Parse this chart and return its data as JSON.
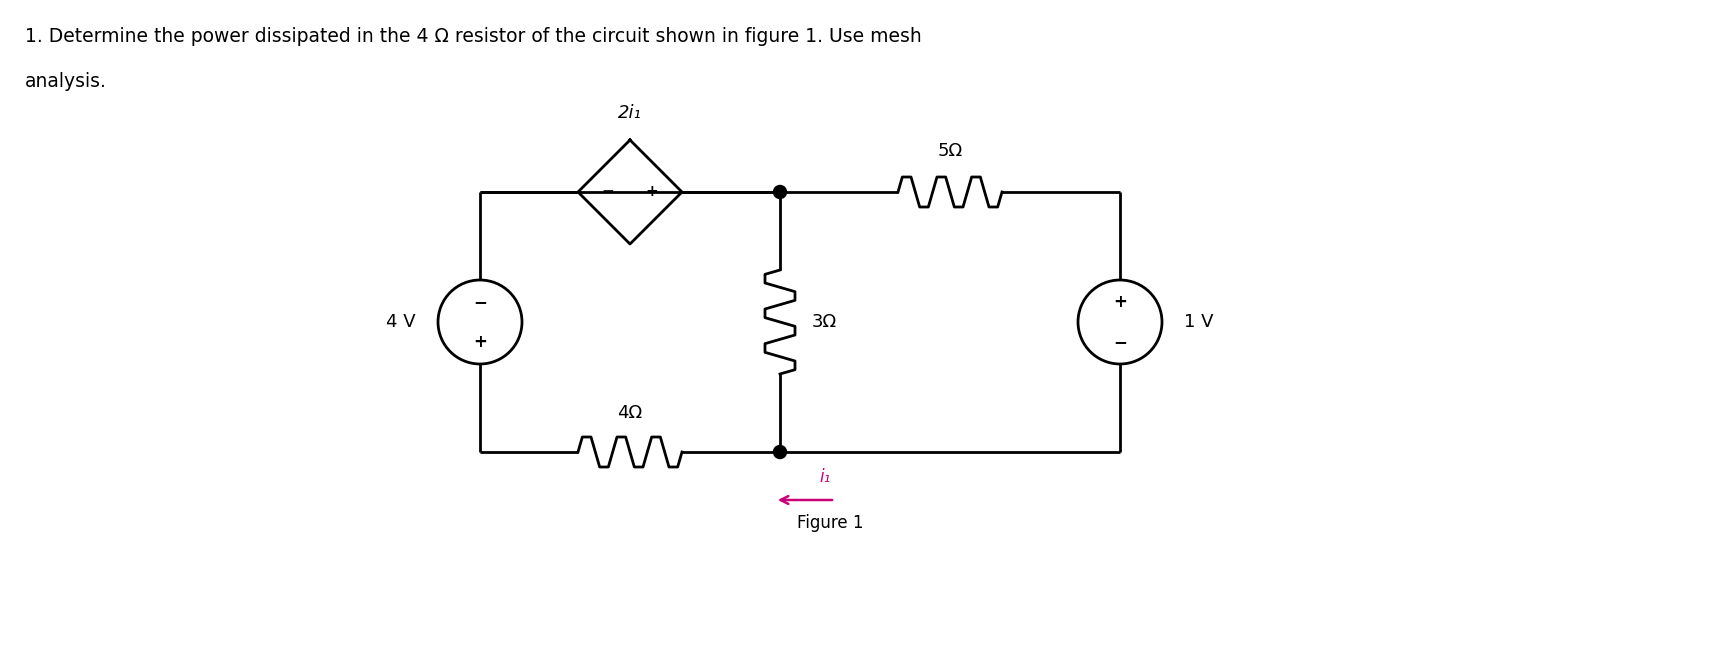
{
  "title_line1": "1. Determine the power dissipated in the 4 Ω resistor of the circuit shown in figure 1. Use mesh",
  "title_line2": "analysis.",
  "figure_caption": "Figure 1",
  "bg_color": "#ffffff",
  "text_color": "#000000",
  "label_color_5ohm": "#000000",
  "label_color_i1": "#cc0077",
  "resistor_label_4ohm": "4Ω",
  "resistor_label_3ohm": "3Ω",
  "resistor_label_5ohm": "5Ω",
  "source_label_4v": "4 V",
  "source_label_1v": "1 V",
  "dep_source_label": "2i₁",
  "current_label": "i₁",
  "line_width": 2.0
}
